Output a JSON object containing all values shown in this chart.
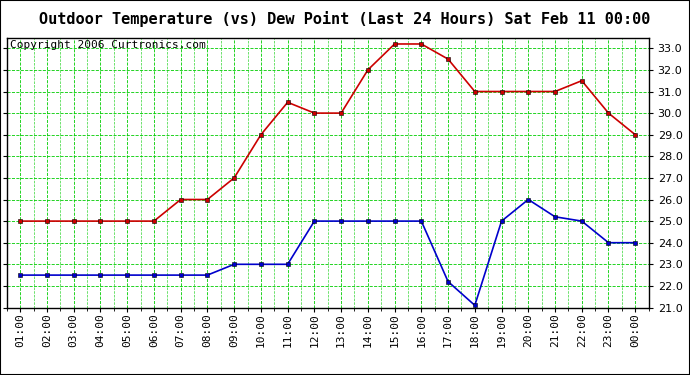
{
  "title": "Outdoor Temperature (vs) Dew Point (Last 24 Hours) Sat Feb 11 00:00",
  "copyright": "Copyright 2006 Curtronics.com",
  "x_labels": [
    "01:00",
    "02:00",
    "03:00",
    "04:00",
    "05:00",
    "06:00",
    "07:00",
    "08:00",
    "09:00",
    "10:00",
    "11:00",
    "12:00",
    "13:00",
    "14:00",
    "15:00",
    "16:00",
    "17:00",
    "18:00",
    "19:00",
    "20:00",
    "21:00",
    "22:00",
    "23:00",
    "00:00"
  ],
  "temp_red": [
    25.0,
    25.0,
    25.0,
    25.0,
    25.0,
    25.0,
    26.0,
    26.0,
    27.0,
    29.0,
    30.5,
    30.0,
    30.0,
    32.0,
    33.2,
    33.2,
    32.5,
    31.0,
    31.0,
    31.0,
    31.0,
    31.5,
    30.0,
    29.0
  ],
  "dew_blue": [
    22.5,
    22.5,
    22.5,
    22.5,
    22.5,
    22.5,
    22.5,
    22.5,
    23.0,
    23.0,
    23.0,
    25.0,
    25.0,
    25.0,
    25.0,
    25.0,
    22.2,
    21.1,
    25.0,
    26.0,
    25.2,
    25.0,
    24.0,
    24.0
  ],
  "ylim_min": 21.0,
  "ylim_max": 33.5,
  "yticks": [
    21.0,
    22.0,
    23.0,
    24.0,
    25.0,
    26.0,
    27.0,
    28.0,
    29.0,
    30.0,
    31.0,
    32.0,
    33.0
  ],
  "bg_color": "#ffffff",
  "grid_color": "#00cc00",
  "red_color": "#cc0000",
  "blue_color": "#0000cc",
  "title_fontsize": 11,
  "copyright_fontsize": 8,
  "tick_fontsize": 8
}
